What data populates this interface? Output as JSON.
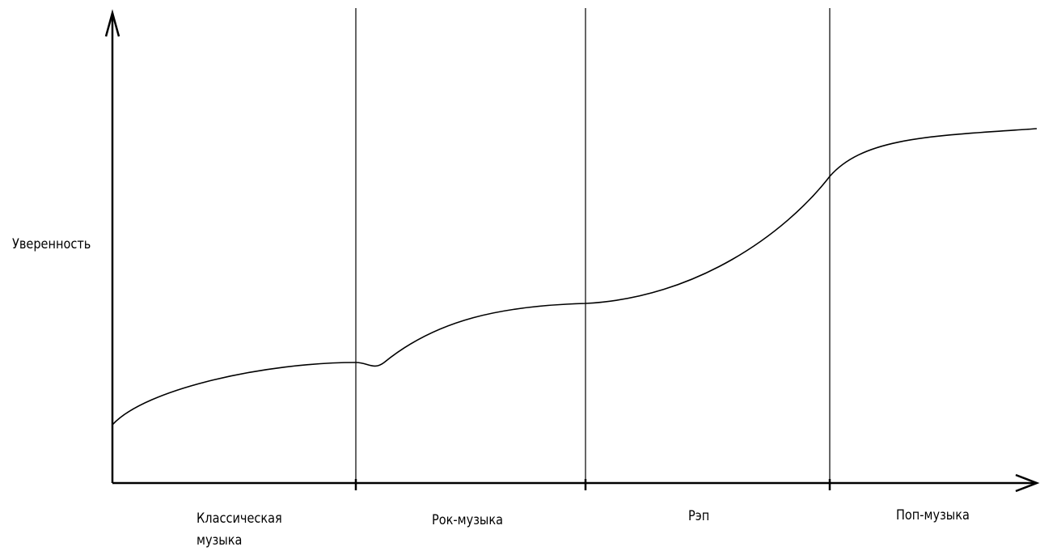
{
  "diagram": {
    "y_axis_label": "Уверенность",
    "sections": [
      {
        "label_line1": "Классическая",
        "label_line2": "музыка"
      },
      {
        "label_line1": "Рок-музыка"
      },
      {
        "label_line1": "Рэп"
      },
      {
        "label_line1": "Поп-музыка"
      }
    ]
  }
}
